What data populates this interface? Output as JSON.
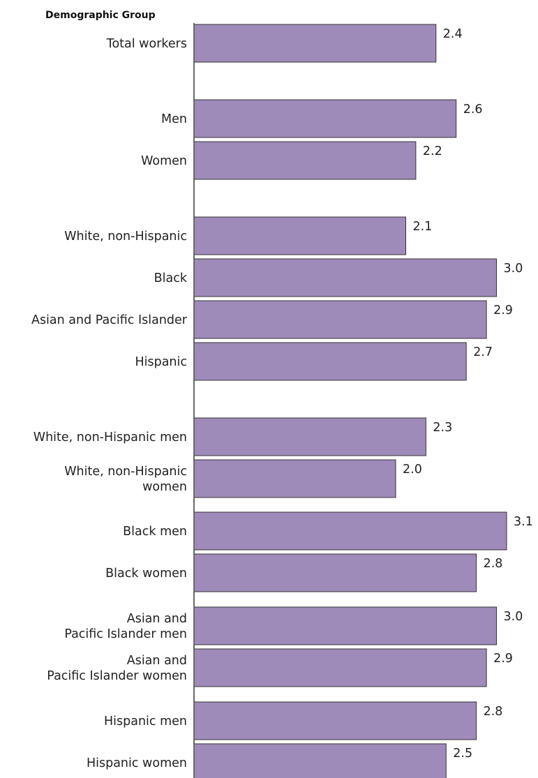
{
  "chart_data": {
    "type": "bar",
    "orientation": "horizontal",
    "group_title": "Demographic Group",
    "categories": [
      [
        "Total workers"
      ],
      [
        "Men"
      ],
      [
        "Women"
      ],
      [
        "White, non-Hispanic"
      ],
      [
        "Black"
      ],
      [
        "Asian and Pacific Islander"
      ],
      [
        "Hispanic"
      ],
      [
        "White, non-Hispanic men"
      ],
      [
        "White, non-Hispanic",
        "women"
      ],
      [
        "Black men"
      ],
      [
        "Black women"
      ],
      [
        "Asian and",
        "Pacific Islander men"
      ],
      [
        "Asian and",
        "Pacific Islander women"
      ],
      [
        "Hispanic men"
      ],
      [
        "Hispanic women"
      ]
    ],
    "values": [
      2.4,
      2.6,
      2.2,
      2.1,
      3.0,
      2.9,
      2.7,
      2.3,
      2.0,
      3.1,
      2.8,
      3.0,
      2.9,
      2.8,
      2.5
    ],
    "value_labels": [
      "2.4",
      "2.6",
      "2.2",
      "2.1",
      "3.0",
      "2.9",
      "2.7",
      "2.3",
      "2.0",
      "3.1",
      "2.8",
      "3.0",
      "2.9",
      "2.8",
      "2.5"
    ],
    "bar_color": "#9f8bba",
    "bar_border_color": "#333333",
    "xlim": [
      0,
      3.1
    ],
    "grid": false,
    "legend": "none"
  }
}
